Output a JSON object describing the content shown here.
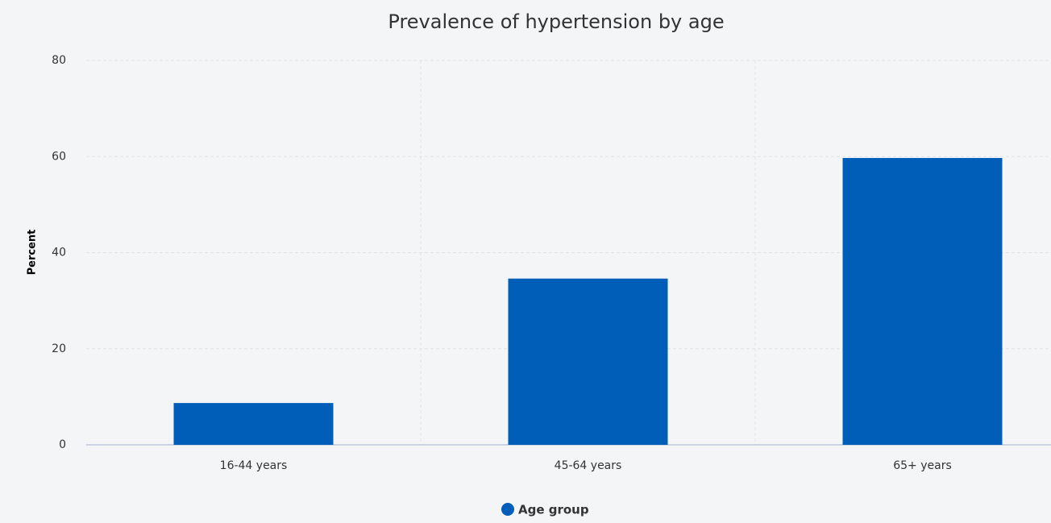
{
  "chart_data": {
    "type": "bar",
    "title": "Prevalence of hypertension by age",
    "y_label": "Percent",
    "categories": [
      "16-44 years",
      "45-64 years",
      "65+ years"
    ],
    "series": [
      {
        "name": "Age group",
        "color": "#005eb8",
        "values": [
          8.7,
          34.6,
          59.7
        ]
      }
    ],
    "ylim": [
      0,
      80
    ],
    "yticks": [
      0,
      20,
      40,
      60,
      80
    ],
    "grid": true,
    "legend": "bottom"
  }
}
